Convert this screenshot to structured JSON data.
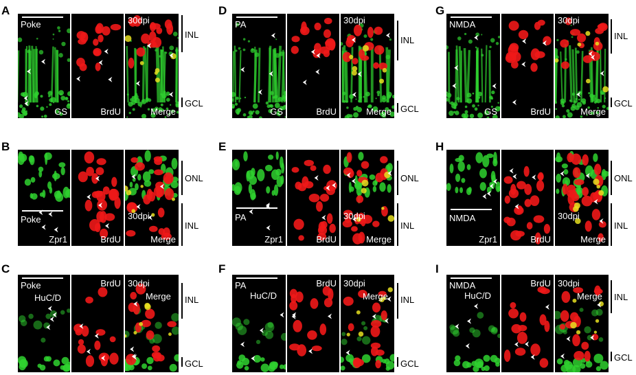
{
  "panels": [
    {
      "id": "A",
      "letter": "A",
      "overlay": {
        "0_tl": "Poke",
        "0_br": "GS",
        "1_br": "BrdU",
        "2_tl": "30dpi",
        "2_br": "Merge"
      },
      "layers": [
        "INL",
        "GCL"
      ]
    },
    {
      "id": "B",
      "letter": "B",
      "overlay": {
        "0_bl": "Poke",
        "0_brl": "Zpr1",
        "1_brl": "BrdU",
        "2_bl": "30dpi",
        "2_brl": "Merge"
      },
      "layers": [
        "ONL",
        "INL"
      ]
    },
    {
      "id": "C",
      "letter": "C",
      "overlay": {
        "0_tl": "Poke",
        "0_tl2": "HuC/D",
        "1_tr": "BrdU",
        "2_tl": "30dpi",
        "2_tl2": "Merge"
      },
      "layers": [
        "INL",
        "GCL"
      ]
    },
    {
      "id": "D",
      "letter": "D",
      "overlay": {
        "0_tl": "PA",
        "0_br": "GS",
        "1_br": "BrdU",
        "2_tl": "30dpi",
        "2_br": "Merge"
      },
      "layers": [
        "INL",
        "GCL"
      ]
    },
    {
      "id": "E",
      "letter": "E",
      "overlay": {
        "0_bl": "PA",
        "0_brl": "Zpr1",
        "1_brl": "BrdU",
        "2_bl": "30dpi",
        "2_brl": "Merge"
      },
      "layers": [
        "ONL",
        "INL"
      ]
    },
    {
      "id": "F",
      "letter": "F",
      "overlay": {
        "0_tl": "PA",
        "0_tl2": "HuC/D",
        "1_tr": "BrdU",
        "2_tl": "30dpi",
        "2_tl2": "Merge"
      },
      "layers": [
        "INL",
        "GCL"
      ]
    },
    {
      "id": "G",
      "letter": "G",
      "overlay": {
        "0_tl": "NMDA",
        "0_br": "GS",
        "1_br": "BrdU",
        "2_tl": "30dpi",
        "2_br": "Merge"
      },
      "layers": [
        "INL",
        "GCL"
      ]
    },
    {
      "id": "H",
      "letter": "H",
      "overlay": {
        "0_bl": "NMDA",
        "0_brl": "Zpr1",
        "1_brl": "BrdU",
        "2_bl": "30dpi",
        "2_brl": "Merge"
      },
      "layers": [
        "ONL",
        "INL"
      ]
    },
    {
      "id": "I",
      "letter": "I",
      "overlay": {
        "0_tl": "NMDA",
        "0_tl2": "HuC/D",
        "1_tr": "BrdU",
        "2_tl": "30dpi",
        "2_tl2": "Merge"
      },
      "layers": [
        "INL",
        "GCL"
      ]
    }
  ],
  "colors": {
    "green": "#2fd12f",
    "red": "#f01818",
    "yellow": "#e8e020",
    "arrow": "#ffffff"
  }
}
